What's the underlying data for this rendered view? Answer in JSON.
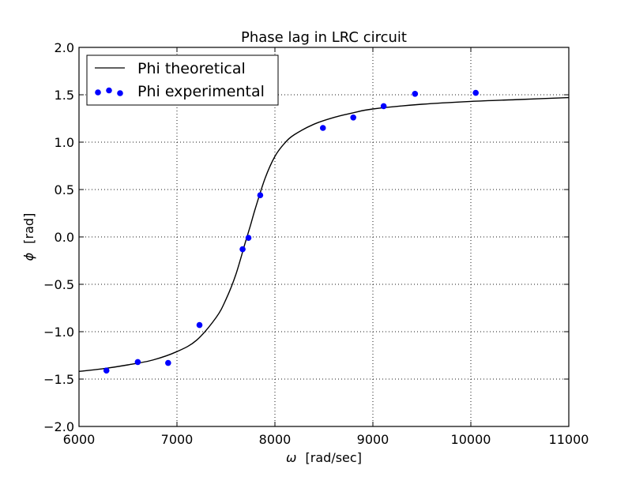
{
  "chart_data": {
    "type": "line",
    "title": "Phase lag in LRC circuit",
    "xlabel_symbol": "ω",
    "xlabel_text": "[rad/sec]",
    "ylabel_symbol": "ϕ",
    "ylabel_text": "[rad]",
    "xlim": [
      6000,
      11000
    ],
    "ylim": [
      -2.0,
      2.0
    ],
    "x_ticks": [
      6000,
      7000,
      8000,
      9000,
      10000,
      11000
    ],
    "x_tick_labels": [
      "6000",
      "7000",
      "8000",
      "9000",
      "10000",
      "11000"
    ],
    "y_ticks": [
      -2.0,
      -1.5,
      -1.0,
      -0.5,
      0.0,
      0.5,
      1.0,
      1.5,
      2.0
    ],
    "y_tick_labels": [
      "−2.0",
      "−1.5",
      "−1.0",
      "−0.5",
      "0.0",
      "0.5",
      "1.0",
      "1.5",
      "2.0"
    ],
    "grid": true,
    "legend_position": "top-left",
    "series": [
      {
        "name": "Phi theoretical",
        "kind": "line",
        "color": "#000000",
        "x": [
          6000,
          6250,
          6500,
          6750,
          7000,
          7200,
          7400,
          7500,
          7600,
          7700,
          7750,
          7800,
          7900,
          8000,
          8100,
          8200,
          8400,
          8600,
          8800,
          9000,
          9500,
          10000,
          10500,
          11000
        ],
        "y": [
          -1.42,
          -1.39,
          -1.35,
          -1.3,
          -1.21,
          -1.09,
          -0.85,
          -0.66,
          -0.4,
          -0.05,
          0.12,
          0.3,
          0.62,
          0.85,
          0.99,
          1.08,
          1.19,
          1.26,
          1.31,
          1.35,
          1.4,
          1.43,
          1.45,
          1.47
        ]
      },
      {
        "name": "Phi experimental",
        "kind": "scatter",
        "color": "#0000ff",
        "x": [
          6280,
          6600,
          6910,
          7230,
          7670,
          7730,
          7850,
          8490,
          8800,
          9110,
          9430,
          10050
        ],
        "y": [
          -1.41,
          -1.32,
          -1.33,
          -0.93,
          -0.13,
          -0.01,
          0.44,
          1.15,
          1.26,
          1.38,
          1.51,
          1.52
        ]
      }
    ]
  }
}
